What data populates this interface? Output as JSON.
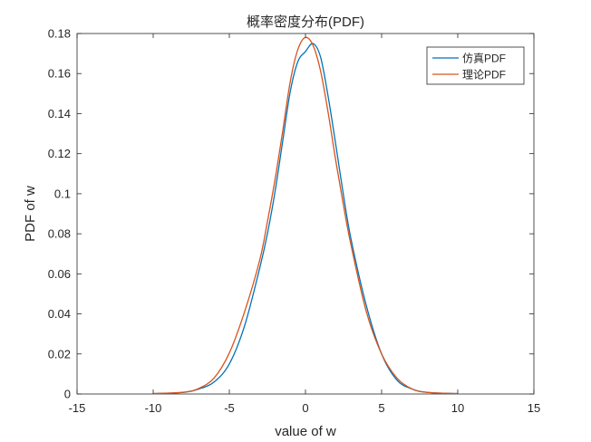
{
  "chart_data": {
    "type": "line",
    "title": "概率密度分布(PDF)",
    "xlabel": "value of w",
    "ylabel": "PDF of w",
    "xlim": [
      -15,
      15
    ],
    "ylim": [
      0,
      0.18
    ],
    "x_ticks": [
      -15,
      -10,
      -5,
      0,
      5,
      10,
      15
    ],
    "y_ticks": [
      0,
      0.02,
      0.04,
      0.06,
      0.08,
      0.1,
      0.12,
      0.14,
      0.16,
      0.18
    ],
    "x_tick_labels": [
      "-15",
      "-10",
      "-5",
      "0",
      "5",
      "10",
      "15"
    ],
    "y_tick_labels": [
      "0",
      "0.02",
      "0.04",
      "0.06",
      "0.08",
      "0.1",
      "0.12",
      "0.14",
      "0.16",
      "0.18"
    ],
    "grid": false,
    "legend_position": "top-right",
    "series": [
      {
        "name": "仿真PDF",
        "color": "#0072bd",
        "x": [
          -10,
          -8,
          -7,
          -6,
          -5,
          -4,
          -3,
          -2.5,
          -2,
          -1.5,
          -1,
          -0.5,
          0,
          0.5,
          1,
          1.5,
          2,
          2.5,
          3,
          4,
          5,
          6,
          7,
          8,
          10
        ],
        "y": [
          0.0002,
          0.0008,
          0.0025,
          0.006,
          0.015,
          0.034,
          0.063,
          0.08,
          0.101,
          0.126,
          0.151,
          0.166,
          0.171,
          0.175,
          0.168,
          0.148,
          0.124,
          0.099,
          0.077,
          0.044,
          0.02,
          0.007,
          0.0025,
          0.0008,
          0.0002
        ]
      },
      {
        "name": "理论PDF",
        "color": "#d95319",
        "x": [
          -10,
          -8,
          -7,
          -6,
          -5,
          -4,
          -3,
          -2.5,
          -2,
          -1.5,
          -1,
          -0.5,
          0,
          0.5,
          1,
          1.5,
          2,
          2.5,
          3,
          4,
          5,
          6,
          7,
          8,
          10
        ],
        "y": [
          0.0002,
          0.0009,
          0.0028,
          0.008,
          0.0205,
          0.041,
          0.067,
          0.086,
          0.107,
          0.131,
          0.156,
          0.172,
          0.178,
          0.174,
          0.161,
          0.14,
          0.116,
          0.094,
          0.074,
          0.041,
          0.02,
          0.008,
          0.0025,
          0.0008,
          0.0002
        ]
      }
    ]
  }
}
